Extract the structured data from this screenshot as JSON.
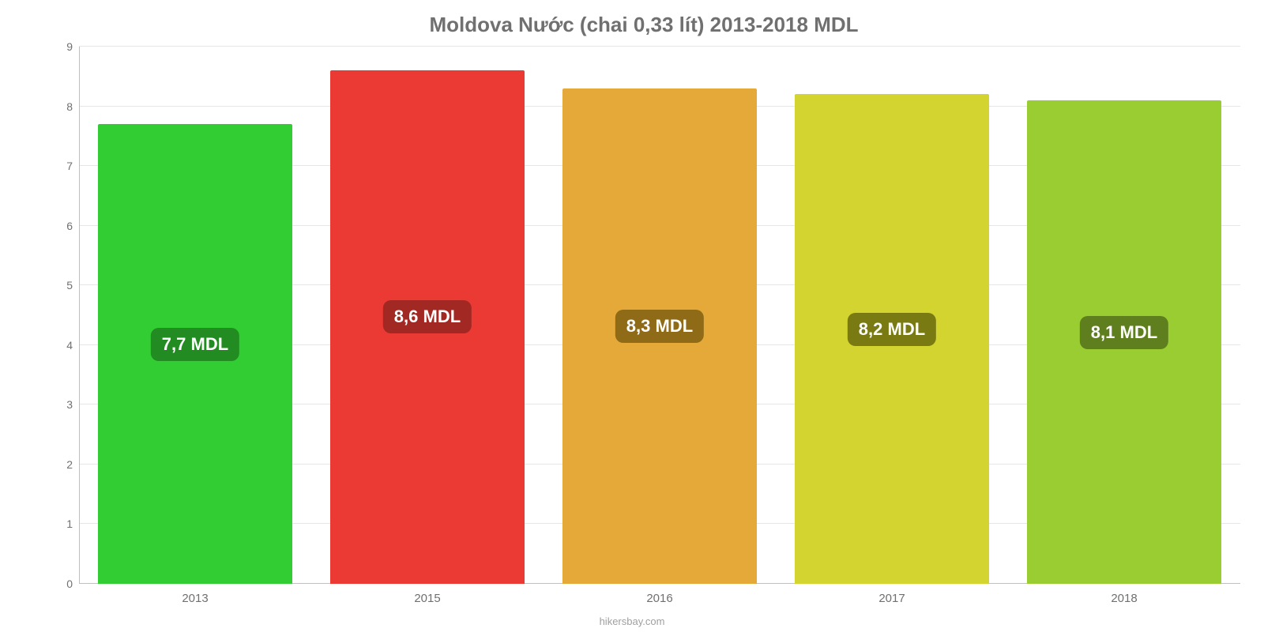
{
  "chart": {
    "type": "bar",
    "title": "Moldova Nước (chai 0,33 lít) 2013-2018 MDL",
    "title_fontsize": 26,
    "title_color": "#707070",
    "background_color": "#ffffff",
    "grid_color": "#e6e6e6",
    "axis_color": "#c0c0c0",
    "text_color": "#707070",
    "ylim_min": 0,
    "ylim_max": 9,
    "y_ticks": [
      0,
      1,
      2,
      3,
      4,
      5,
      6,
      7,
      8,
      9
    ],
    "categories": [
      "2013",
      "2015",
      "2016",
      "2017",
      "2018"
    ],
    "values": [
      7.7,
      8.6,
      8.3,
      8.2,
      8.1
    ],
    "value_labels": [
      "7,7 MDL",
      "8,6 MDL",
      "8,3 MDL",
      "8,2 MDL",
      "8,1 MDL"
    ],
    "bar_colors": [
      "#32cd32",
      "#ea3a33",
      "#e5a93a",
      "#d3d42f",
      "#9acd32"
    ],
    "label_bg_colors": [
      "#228b22",
      "#a22823",
      "#8f6a17",
      "#7a7a12",
      "#5f7f1f"
    ],
    "label_text_color": "#ffffff",
    "label_fontsize": 22,
    "tick_fontsize": 14,
    "xlabel_fontsize": 15,
    "bar_width_pct": 84,
    "credit": "hikersbay.com",
    "credit_color": "#a0a0a0"
  }
}
